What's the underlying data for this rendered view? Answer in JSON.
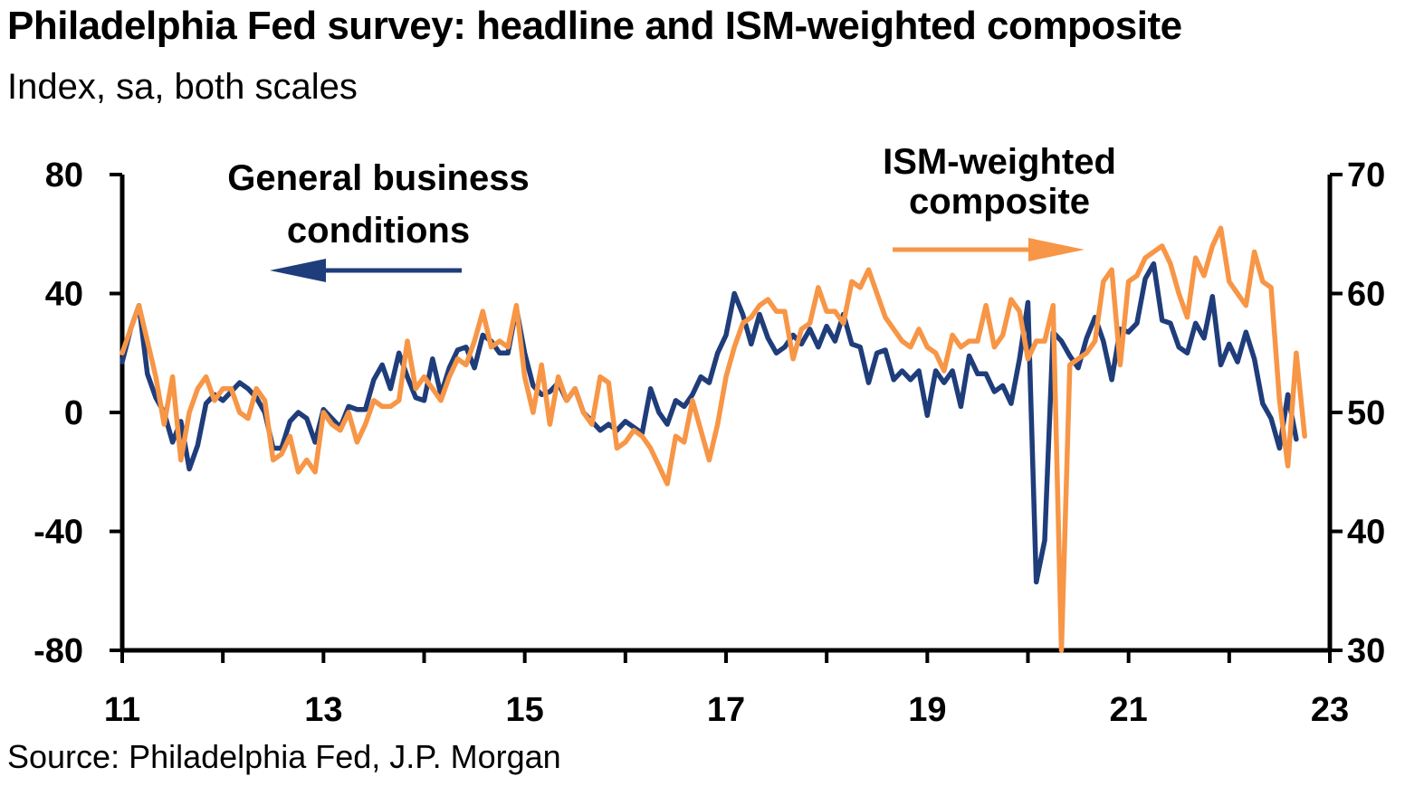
{
  "title": "Philadelphia Fed survey: headline and ISM-weighted composite",
  "subtitle": "Index, sa, both scales",
  "source": "Source: Philadelphia Fed, J.P. Morgan",
  "colors": {
    "headline": "#1f3d7a",
    "composite": "#f79646",
    "axis": "#000000"
  },
  "chart_data": {
    "type": "line",
    "x_ticks": [
      "11",
      "13",
      "15",
      "17",
      "19",
      "21",
      "23"
    ],
    "x_tick_values": [
      2011,
      2013,
      2015,
      2017,
      2019,
      2021,
      2023
    ],
    "xlim": [
      2011,
      2023
    ],
    "left_axis": {
      "ylim": [
        -80,
        80
      ],
      "ticks": [
        "80",
        "40",
        "0",
        "-40",
        "-80"
      ],
      "tick_values": [
        80,
        40,
        0,
        -40,
        -80
      ]
    },
    "right_axis": {
      "ylim": [
        30,
        70
      ],
      "ticks": [
        "70",
        "60",
        "50",
        "40",
        "30"
      ],
      "tick_values": [
        70,
        60,
        50,
        40,
        30
      ]
    },
    "annotations": {
      "headline_lines": [
        "General business",
        "conditions"
      ],
      "composite_lines": [
        "ISM-weighted",
        "composite"
      ]
    },
    "series": [
      {
        "name": "General business conditions",
        "axis": "left",
        "x_start": 2011.0,
        "x_step": 0.08333,
        "values": [
          17,
          28,
          36,
          13,
          5,
          0,
          -10,
          -3,
          -19,
          -11,
          3,
          6,
          4,
          7,
          10,
          8,
          5,
          0,
          -12,
          -12,
          -3,
          0,
          -2,
          -10,
          1,
          -2,
          -5,
          2,
          1,
          1,
          11,
          16,
          8,
          20,
          12,
          5,
          4,
          18,
          6,
          15,
          21,
          22,
          15,
          26,
          24,
          20,
          20,
          35,
          20,
          9,
          6,
          7,
          10,
          4,
          8,
          0,
          -3,
          -6,
          -4,
          -6,
          -3,
          -5,
          -7,
          8,
          0,
          -4,
          4,
          2,
          6,
          12,
          10,
          20,
          26,
          40,
          33,
          23,
          33,
          25,
          20,
          22,
          26,
          23,
          28,
          22,
          29,
          24,
          33,
          23,
          22,
          10,
          20,
          21,
          11,
          14,
          11,
          14,
          -1,
          14,
          10,
          14,
          2,
          19,
          13,
          13,
          7,
          9,
          3,
          18,
          37,
          -57,
          -43,
          27,
          24,
          19,
          15,
          25,
          32,
          24,
          11,
          28,
          27,
          30,
          45,
          50,
          31,
          30,
          22,
          20,
          30,
          25,
          39,
          16,
          23,
          17,
          27,
          18,
          3,
          -2,
          -12,
          6,
          -9
        ]
      },
      {
        "name": "ISM-weighted composite",
        "axis": "right",
        "x_start": 2011.0,
        "x_step": 0.08333,
        "values": [
          55,
          57,
          59,
          56,
          53,
          49,
          53,
          46,
          50,
          52,
          53,
          51,
          52,
          52,
          50,
          49.5,
          52,
          51,
          46,
          46.5,
          48,
          45,
          46,
          45,
          50,
          49,
          48.5,
          50,
          47.5,
          49,
          51,
          50.5,
          50.5,
          51,
          56,
          52,
          53,
          52,
          51,
          53,
          54.5,
          54,
          56,
          58.5,
          55.5,
          56,
          55.5,
          59,
          53,
          50,
          54,
          49,
          53,
          51,
          52,
          50,
          49,
          53,
          52.5,
          47,
          47.5,
          48.5,
          48,
          47,
          45.5,
          44,
          48,
          47.5,
          51,
          48.5,
          46,
          49,
          53,
          55.5,
          57.5,
          58,
          59,
          59.5,
          58.5,
          58.5,
          54.5,
          57,
          57.5,
          60.5,
          58.5,
          58.5,
          57.5,
          61,
          60.5,
          62,
          60,
          58,
          57,
          56,
          55.5,
          57,
          55.5,
          55,
          53.5,
          56.5,
          55.5,
          56,
          56,
          59,
          55.5,
          56.5,
          59.5,
          58.5,
          54.5,
          56,
          56,
          59,
          30,
          54,
          54.5,
          55,
          56,
          61,
          62,
          54,
          61,
          61.5,
          63,
          63.5,
          64,
          62.5,
          60,
          58,
          63,
          61.5,
          64,
          65.5,
          61,
          60,
          59,
          63.5,
          61,
          60.5,
          51,
          45.5,
          55,
          48
        ]
      }
    ]
  }
}
